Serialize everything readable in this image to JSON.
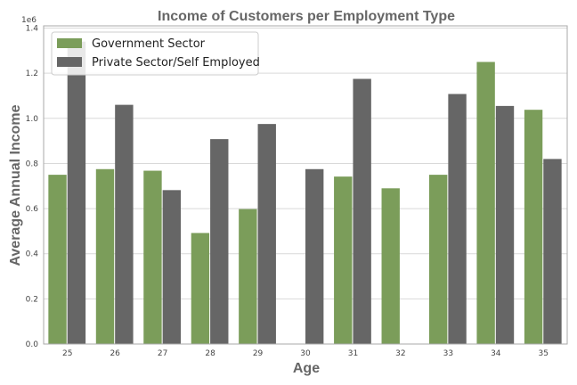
{
  "chart_data": {
    "type": "bar",
    "title": "Income of Customers per Employment Type",
    "xlabel": "Age",
    "ylabel": "Average Annual Income",
    "y_multiplier": "1e6",
    "categories": [
      "25",
      "26",
      "27",
      "28",
      "29",
      "30",
      "31",
      "32",
      "33",
      "34",
      "35"
    ],
    "series": [
      {
        "name": "Government Sector",
        "color": "#7b9d5a",
        "values": [
          750000,
          775000,
          768000,
          492000,
          598000,
          null,
          742000,
          690000,
          750000,
          1250000,
          1038000
        ]
      },
      {
        "name": "Private Sector/Self Employed",
        "color": "#666666",
        "values": [
          1340000,
          1060000,
          682000,
          908000,
          975000,
          775000,
          1175000,
          null,
          1108000,
          1055000,
          820000
        ]
      }
    ],
    "ylim": [
      0,
      1.41
    ],
    "yticks": [
      "0.0",
      "0.2",
      "0.4",
      "0.6",
      "0.8",
      "1.0",
      "1.2",
      "1.4"
    ],
    "grid": true,
    "legend_position": "top-left"
  }
}
